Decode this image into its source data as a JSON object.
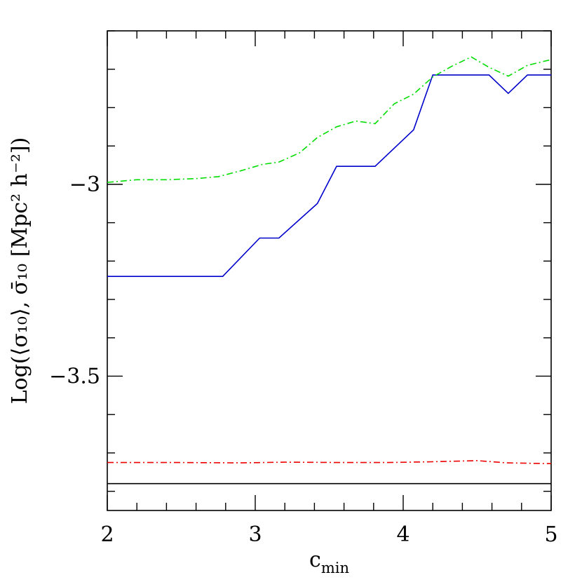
{
  "chart_data": {
    "type": "line",
    "xlabel": "c",
    "xlabel_sub": "min",
    "ylabel": "Log(⟨σ₁₀⟩, σ̄₁₀ [Mpc² h⁻²])",
    "xlim": [
      2,
      5
    ],
    "ylim": [
      -3.85,
      -2.6
    ],
    "x_ticks": [
      2,
      3,
      4,
      5
    ],
    "x_tick_labels": [
      "2",
      "3",
      "4",
      "5"
    ],
    "y_ticks": [
      -3.5,
      -3
    ],
    "y_tick_labels": [
      "−3.5",
      "−3"
    ],
    "grid": false,
    "series": [
      {
        "color": "#0000cc",
        "style": "solid",
        "x": [
          2.0,
          2.78,
          3.03,
          3.16,
          3.42,
          3.55,
          3.81,
          4.07,
          4.2,
          4.58,
          4.71,
          4.84,
          5.0
        ],
        "y": [
          -3.24,
          -3.24,
          -3.14,
          -3.14,
          -3.05,
          -2.953,
          -2.953,
          -2.858,
          -2.715,
          -2.715,
          -2.763,
          -2.715,
          -2.715
        ]
      },
      {
        "color": "#00dd00",
        "style": "dashdot",
        "x": [
          2.0,
          2.2,
          2.4,
          2.6,
          2.75,
          2.9,
          3.05,
          3.16,
          3.3,
          3.42,
          3.55,
          3.68,
          3.81,
          3.94,
          4.07,
          4.2,
          4.33,
          4.46,
          4.58,
          4.71,
          4.84,
          5.0
        ],
        "y": [
          -2.995,
          -2.988,
          -2.988,
          -2.985,
          -2.98,
          -2.965,
          -2.948,
          -2.942,
          -2.918,
          -2.878,
          -2.85,
          -2.835,
          -2.842,
          -2.79,
          -2.765,
          -2.72,
          -2.692,
          -2.668,
          -2.695,
          -2.718,
          -2.69,
          -2.675
        ]
      },
      {
        "color": "#ee0000",
        "style": "dashdot",
        "x": [
          2.0,
          2.5,
          2.9,
          3.2,
          3.6,
          3.9,
          4.2,
          4.5,
          4.7,
          5.0
        ],
        "y": [
          -3.725,
          -3.725,
          -3.726,
          -3.724,
          -3.725,
          -3.725,
          -3.723,
          -3.72,
          -3.726,
          -3.728
        ]
      },
      {
        "color": "#000000",
        "style": "solid",
        "x": [
          2.0,
          5.0
        ],
        "y": [
          -3.78,
          -3.78
        ]
      }
    ]
  }
}
